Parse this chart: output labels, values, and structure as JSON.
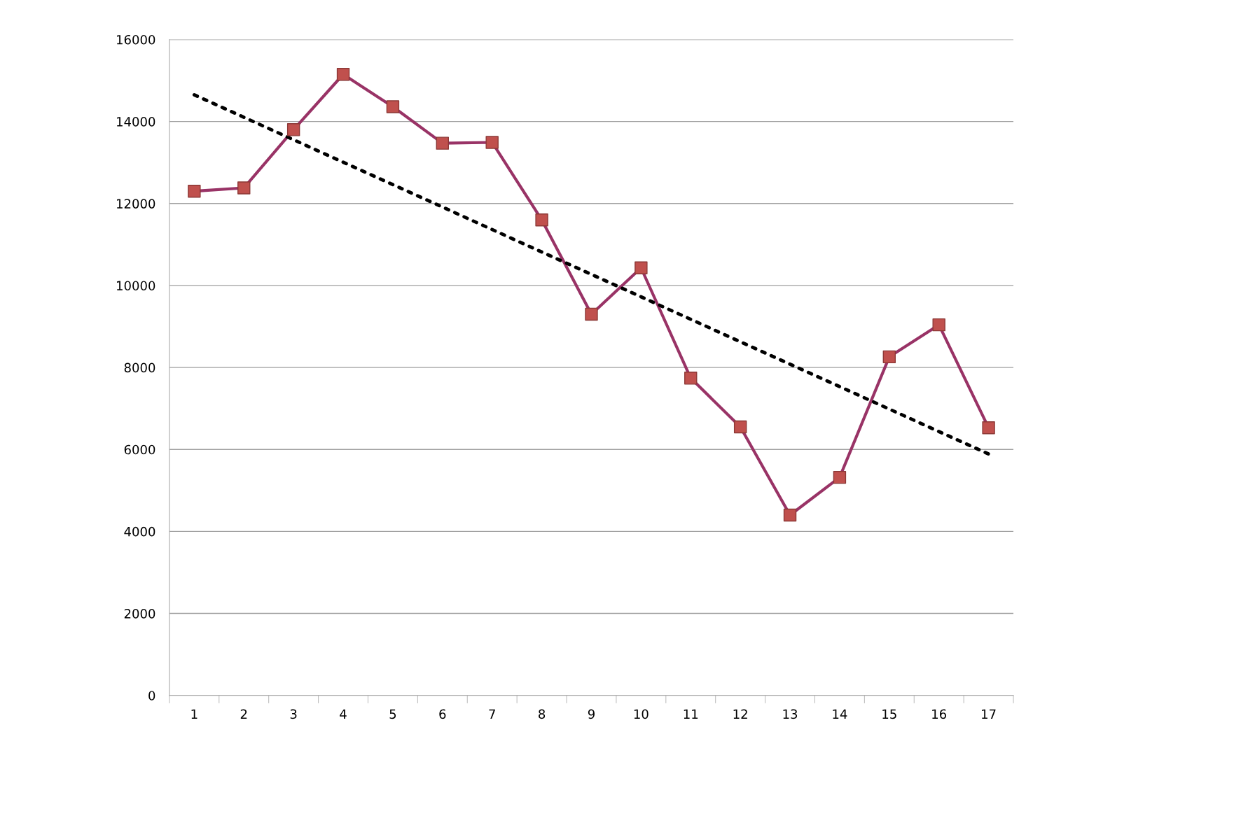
{
  "chart_data": {
    "type": "line",
    "categories": [
      "1",
      "2",
      "3",
      "4",
      "5",
      "6",
      "7",
      "8",
      "9",
      "10",
      "11",
      "12",
      "13",
      "14",
      "15",
      "16",
      "17"
    ],
    "series": [
      {
        "color": "#993366",
        "colors": [
          "#c0504d",
          "#c0504d",
          "#c0504d",
          "#c0504d",
          "#c0504d",
          "#c0504d",
          "#c0504d",
          "#c0504d",
          "#c0504d",
          "#c0504d",
          "#c0504d",
          "#c0504d",
          "#c0504d",
          "#c0504d",
          "#c0504d",
          "#c0504d",
          "#c0504d"
        ],
        "marker": "square",
        "line_style": "solid",
        "values": [
          12300,
          12380,
          13800,
          15150,
          14360,
          13470,
          13490,
          11600,
          9300,
          10430,
          7740,
          6550,
          4400,
          5320,
          8260,
          9040,
          6530
        ]
      },
      {
        "type": "line",
        "color": "#000000",
        "marker": "none",
        "line_style": "dotted",
        "x": [
          "1",
          "17"
        ],
        "values": [
          14650,
          5890
        ]
      }
    ],
    "ylim": [
      0,
      16000
    ],
    "yticks": [
      0,
      2000,
      4000,
      6000,
      8000,
      10000,
      12000,
      14000,
      16000
    ],
    "grid": "y",
    "legend": false
  }
}
